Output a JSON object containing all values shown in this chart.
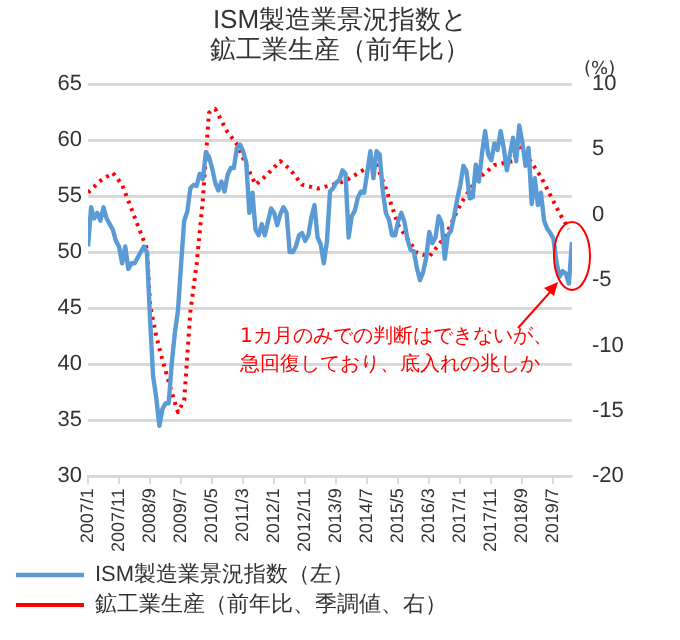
{
  "chart_data": {
    "type": "line",
    "title": "ISM製造業景況指数と鉱工業生産（前年比）",
    "y2label": "(%)",
    "x": [
      "2007-01",
      "2007-02",
      "2007-03",
      "2007-04",
      "2007-05",
      "2007-06",
      "2007-07",
      "2007-08",
      "2007-09",
      "2007-10",
      "2007-11",
      "2007-12",
      "2008-01",
      "2008-02",
      "2008-03",
      "2008-04",
      "2008-05",
      "2008-06",
      "2008-07",
      "2008-08",
      "2008-09",
      "2008-10",
      "2008-11",
      "2008-12",
      "2009-01",
      "2009-02",
      "2009-03",
      "2009-04",
      "2009-05",
      "2009-06",
      "2009-07",
      "2009-08",
      "2009-09",
      "2009-10",
      "2009-11",
      "2009-12",
      "2010-01",
      "2010-02",
      "2010-03",
      "2010-04",
      "2010-05",
      "2010-06",
      "2010-07",
      "2010-08",
      "2010-09",
      "2010-10",
      "2010-11",
      "2010-12",
      "2011-01",
      "2011-02",
      "2011-03",
      "2011-04",
      "2011-05",
      "2011-06",
      "2011-07",
      "2011-08",
      "2011-09",
      "2011-10",
      "2011-11",
      "2011-12",
      "2012-01",
      "2012-02",
      "2012-03",
      "2012-04",
      "2012-05",
      "2012-06",
      "2012-07",
      "2012-08",
      "2012-09",
      "2012-10",
      "2012-11",
      "2012-12",
      "2013-01",
      "2013-02",
      "2013-03",
      "2013-04",
      "2013-05",
      "2013-06",
      "2013-07",
      "2013-08",
      "2013-09",
      "2013-10",
      "2013-11",
      "2013-12",
      "2014-01",
      "2014-02",
      "2014-03",
      "2014-04",
      "2014-05",
      "2014-06",
      "2014-07",
      "2014-08",
      "2014-09",
      "2014-10",
      "2014-11",
      "2014-12",
      "2015-01",
      "2015-02",
      "2015-03",
      "2015-04",
      "2015-05",
      "2015-06",
      "2015-07",
      "2015-08",
      "2015-09",
      "2015-10",
      "2015-11",
      "2015-12",
      "2016-01",
      "2016-02",
      "2016-03",
      "2016-04",
      "2016-05",
      "2016-06",
      "2016-07",
      "2016-08",
      "2016-09",
      "2016-10",
      "2016-11",
      "2016-12",
      "2017-01",
      "2017-02",
      "2017-03",
      "2017-04",
      "2017-05",
      "2017-06",
      "2017-07",
      "2017-08",
      "2017-09",
      "2017-10",
      "2017-11",
      "2017-12",
      "2018-01",
      "2018-02",
      "2018-03",
      "2018-04",
      "2018-05",
      "2018-06",
      "2018-07",
      "2018-08",
      "2018-09",
      "2018-10",
      "2018-11",
      "2018-12",
      "2019-01",
      "2019-02",
      "2019-03",
      "2019-04",
      "2019-05",
      "2019-06",
      "2019-07",
      "2019-08",
      "2019-09",
      "2019-10",
      "2019-11",
      "2019-12",
      "2020-01"
    ],
    "series": [
      {
        "name": "ISM製造業景況指数（左）",
        "color": "#5b9bd5",
        "line_style": "solid",
        "values": [
          50.5,
          54.0,
          53.0,
          53.5,
          52.8,
          54.0,
          53.0,
          52.5,
          52.0,
          51.0,
          50.5,
          49.0,
          50.5,
          48.5,
          49.0,
          49.0,
          49.5,
          50.0,
          50.5,
          50.0,
          44.0,
          38.9,
          37.0,
          34.5,
          36.0,
          36.5,
          36.5,
          40.1,
          42.8,
          44.8,
          48.9,
          52.8,
          53.6,
          55.7,
          56.0,
          55.9,
          57.0,
          56.5,
          58.9,
          58.5,
          57.5,
          56.2,
          55.5,
          56.3,
          55.4,
          56.9,
          57.5,
          57.5,
          59.3,
          59.6,
          59.0,
          58.0,
          53.5,
          55.3,
          52.0,
          51.5,
          52.5,
          51.5,
          52.7,
          53.9,
          53.5,
          52.4,
          53.4,
          54.0,
          53.5,
          50.0,
          50.0,
          50.5,
          51.5,
          51.7,
          51.0,
          51.5,
          53.1,
          54.2,
          51.3,
          50.7,
          49.0,
          50.9,
          55.4,
          55.7,
          56.2,
          56.4,
          57.3,
          57.0,
          51.3,
          53.2,
          53.7,
          54.9,
          55.4,
          55.3,
          57.1,
          59.0,
          56.6,
          59.0,
          58.7,
          55.5,
          53.5,
          52.9,
          51.5,
          51.5,
          52.8,
          53.5,
          52.7,
          51.1,
          50.2,
          50.1,
          48.6,
          47.5,
          48.2,
          49.5,
          51.8,
          50.8,
          51.3,
          53.2,
          52.6,
          49.4,
          51.5,
          51.9,
          53.2,
          54.7,
          56.0,
          57.7,
          57.2,
          54.8,
          54.9,
          57.8,
          56.3,
          58.8,
          60.8,
          58.7,
          58.2,
          59.7,
          59.1,
          60.8,
          59.3,
          57.3,
          58.7,
          60.2,
          58.1,
          61.3,
          59.8,
          57.7,
          59.3,
          54.3,
          56.6,
          54.2,
          55.3,
          52.8,
          52.1,
          51.7,
          51.2,
          49.1,
          47.8,
          48.3,
          48.1,
          47.2,
          50.9
        ]
      },
      {
        "name": "鉱工業生産（前年比、季調値、右）",
        "color": "#ff0000",
        "line_style": "dotted",
        "axis": "y2",
        "x": [
          "2007-01",
          "2007-05",
          "2007-09",
          "2007-12",
          "2008-06",
          "2008-08",
          "2008-09",
          "2008-11",
          "2009-01",
          "2009-04",
          "2009-06",
          "2009-08",
          "2009-10",
          "2009-12",
          "2010-02",
          "2010-04",
          "2010-06",
          "2010-10",
          "2011-01",
          "2011-04",
          "2011-07",
          "2011-10",
          "2012-03",
          "2012-06",
          "2012-10",
          "2013-03",
          "2013-08",
          "2013-12",
          "2014-07",
          "2014-10",
          "2015-01",
          "2015-05",
          "2015-11",
          "2016-03",
          "2016-08",
          "2017-01",
          "2017-06",
          "2017-12",
          "2018-06",
          "2018-08",
          "2019-03",
          "2019-09",
          "2019-12"
        ],
        "values": [
          1.7,
          2.6,
          3.2,
          2.3,
          -1.4,
          -2.6,
          -6.9,
          -9.3,
          -11.1,
          -13.6,
          -15.1,
          -14.2,
          -7.4,
          -3.8,
          1.1,
          7.8,
          8.1,
          6.3,
          5.4,
          3.8,
          2.3,
          2.9,
          4.1,
          3.5,
          2.3,
          2.0,
          2.3,
          2.6,
          3.6,
          3.8,
          2.0,
          -0.8,
          -2.9,
          -3.2,
          -1.7,
          0.8,
          2.6,
          3.8,
          4.1,
          5.4,
          2.9,
          0.1,
          -1.1
        ]
      }
    ],
    "xlim": [
      "2007-01",
      "2020-01"
    ],
    "xticks": [
      {
        "value": "2007-01",
        "label": "2007/1"
      },
      {
        "value": "2007-11",
        "label": "2007/11"
      },
      {
        "value": "2008-09",
        "label": "2008/9"
      },
      {
        "value": "2009-07",
        "label": "2009/7"
      },
      {
        "value": "2010-05",
        "label": "2010/5"
      },
      {
        "value": "2011-03",
        "label": "2011/3"
      },
      {
        "value": "2012-01",
        "label": "2012/1"
      },
      {
        "value": "2012-11",
        "label": "2012/11"
      },
      {
        "value": "2013-09",
        "label": "2013/9"
      },
      {
        "value": "2014-07",
        "label": "2014/7"
      },
      {
        "value": "2015-05",
        "label": "2015/5"
      },
      {
        "value": "2016-03",
        "label": "2016/3"
      },
      {
        "value": "2017-01",
        "label": "2017/1"
      },
      {
        "value": "2017-11",
        "label": "2017/11"
      },
      {
        "value": "2018-09",
        "label": "2018/9"
      },
      {
        "value": "2019-07",
        "label": "2019/7"
      }
    ],
    "ylim": [
      30,
      65
    ],
    "yticks": [
      30,
      35,
      40,
      45,
      50,
      55,
      60,
      65
    ],
    "y2lim": [
      -20,
      10
    ],
    "y2ticks": [
      -20,
      -15,
      -10,
      -5,
      0,
      5,
      10
    ],
    "grid": "y",
    "legend": "bottom",
    "marker": "none",
    "annotations": [
      "1カ月のみでの判断はできないが、",
      "急回復しており、底入れの兆しか"
    ]
  }
}
